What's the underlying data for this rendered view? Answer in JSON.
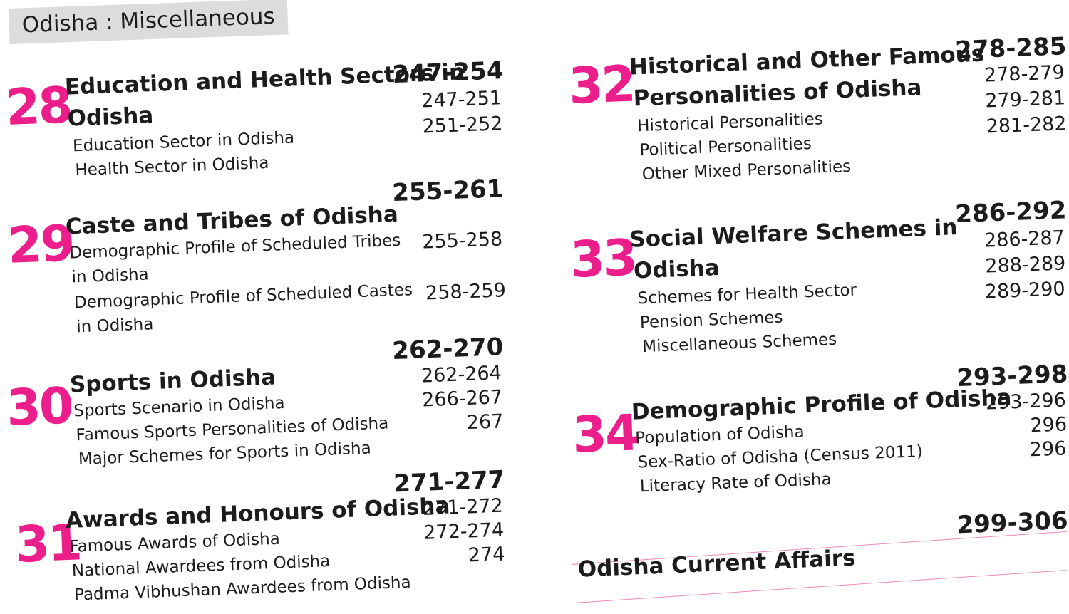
{
  "section": {
    "title": "Odisha : Miscellaneous"
  },
  "chapters": [
    {
      "number": "28",
      "title_lines": [
        "Education and Health Sectors in",
        "Odisha"
      ],
      "range": "247-254",
      "subs": [
        {
          "lines": [
            "Education Sector in Odisha"
          ],
          "range": "247-251"
        },
        {
          "lines": [
            "Health Sector in Odisha"
          ],
          "range": "251-252"
        }
      ]
    },
    {
      "number": "29",
      "title_lines": [
        "Caste and Tribes of Odisha"
      ],
      "range": "255-261",
      "subs": [
        {
          "lines": [
            "Demographic Profile of Scheduled Tribes",
            "in Odisha"
          ],
          "range": "255-258"
        },
        {
          "lines": [
            "Demographic Profile of Scheduled Castes",
            "in Odisha"
          ],
          "range": "258-259"
        }
      ]
    },
    {
      "number": "30",
      "title_lines": [
        "Sports in Odisha"
      ],
      "range": "262-270",
      "subs": [
        {
          "lines": [
            "Sports Scenario in Odisha"
          ],
          "range": "262-264"
        },
        {
          "lines": [
            "Famous Sports Personalities of Odisha"
          ],
          "range": "266-267"
        },
        {
          "lines": [
            "Major Schemes for Sports in Odisha"
          ],
          "range": "267"
        }
      ]
    },
    {
      "number": "31",
      "title_lines": [
        "Awards and Honours of Odisha"
      ],
      "range": "271-277",
      "subs": [
        {
          "lines": [
            "Famous Awards of Odisha"
          ],
          "range": "271-272"
        },
        {
          "lines": [
            "National Awardees from Odisha"
          ],
          "range": "272-274"
        },
        {
          "lines": [
            "Padma Vibhushan Awardees from Odisha"
          ],
          "range": "274"
        }
      ]
    },
    {
      "number": "32",
      "title_lines": [
        "Historical and Other Famous",
        "Personalities of Odisha"
      ],
      "range": "278-285",
      "subs": [
        {
          "lines": [
            "Historical Personalities"
          ],
          "range": "278-279"
        },
        {
          "lines": [
            "Political Personalities"
          ],
          "range": "279-281"
        },
        {
          "lines": [
            "Other Mixed Personalities"
          ],
          "range": "281-282"
        }
      ]
    },
    {
      "number": "33",
      "title_lines": [
        "Social Welfare Schemes in",
        "Odisha"
      ],
      "range": "286-292",
      "subs": [
        {
          "lines": [
            "Schemes for Health Sector"
          ],
          "range": "286-287"
        },
        {
          "lines": [
            "Pension Schemes"
          ],
          "range": "288-289"
        },
        {
          "lines": [
            "Miscellaneous Schemes"
          ],
          "range": "289-290"
        }
      ]
    },
    {
      "number": "34",
      "title_lines": [
        "Demographic Profile of Odisha"
      ],
      "range": "293-298",
      "subs": [
        {
          "lines": [
            "Population of Odisha"
          ],
          "range": "293-296"
        },
        {
          "lines": [
            "Sex-Ratio of Odisha (Census 2011)"
          ],
          "range": "296"
        },
        {
          "lines": [
            "Literacy Rate of Odisha"
          ],
          "range": "296"
        }
      ]
    }
  ],
  "current_affairs": {
    "title": "Odisha Current Affairs",
    "range": "299-306"
  }
}
